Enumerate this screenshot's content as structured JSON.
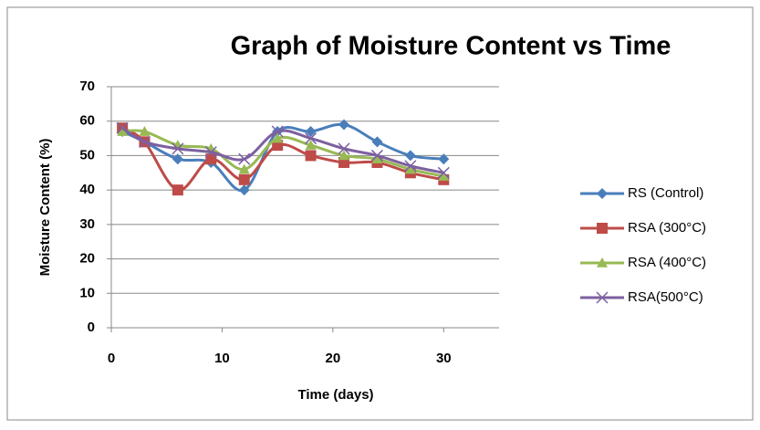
{
  "chart_data": {
    "type": "scatter-line",
    "title": "Graph of Moisture Content vs Time",
    "x_label": "Time (days)",
    "y_label": "Moisture Content (%)",
    "x": [
      1,
      3,
      6,
      9,
      12,
      15,
      18,
      21,
      24,
      27,
      30
    ],
    "series": [
      {
        "name": "RS (Control)",
        "color": "#4a7ebb",
        "marker": "diamond",
        "values": [
          57,
          54,
          49,
          48,
          40,
          57,
          57,
          59,
          54,
          50,
          49
        ]
      },
      {
        "name": "RSA (300°C)",
        "color": "#be4b48",
        "marker": "square",
        "values": [
          58,
          54,
          40,
          49,
          43,
          53,
          50,
          48,
          48,
          45,
          43
        ]
      },
      {
        "name": "RSA (400°C)",
        "color": "#98b954",
        "marker": "triangle",
        "values": [
          57,
          57,
          53,
          52,
          46,
          55,
          53,
          50,
          49,
          46,
          44
        ]
      },
      {
        "name": "RSA(500°C)",
        "color": "#7d60a0",
        "marker": "cross",
        "values": [
          58,
          54,
          52,
          51,
          49,
          57,
          55,
          52,
          50,
          47,
          45
        ]
      }
    ],
    "xlim": [
      0,
      35
    ],
    "xticks": [
      0,
      10,
      20,
      30
    ],
    "ylim": [
      0,
      70
    ],
    "yticks": [
      0,
      10,
      20,
      30,
      40,
      50,
      60,
      70
    ],
    "grid": true,
    "smooth": true,
    "legend": "right"
  }
}
